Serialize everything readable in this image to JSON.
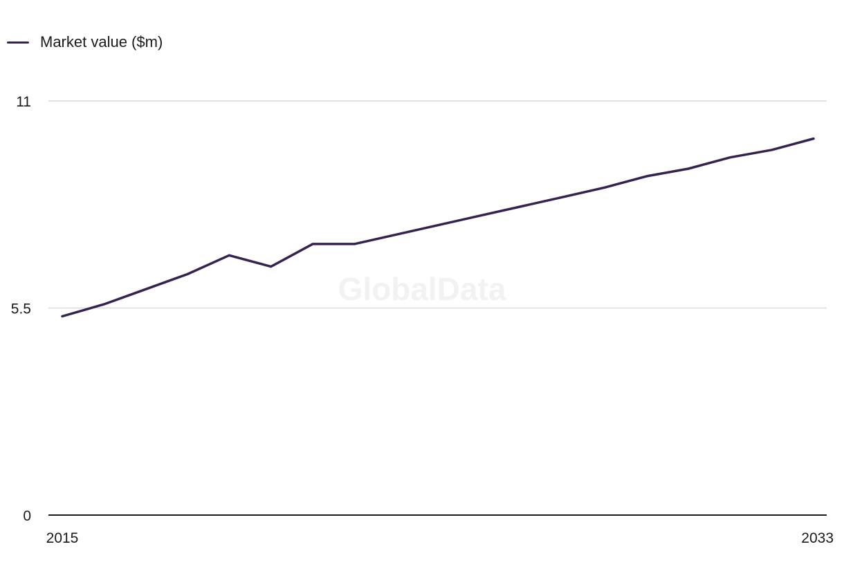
{
  "legend": {
    "label": "Market value ($m)"
  },
  "watermark": "GlobalData",
  "colors": {
    "line": "#35224f",
    "grid": "#d9d9d9",
    "axis": "#1a1a1a"
  },
  "chart_data": {
    "type": "line",
    "title": "",
    "xlabel": "",
    "ylabel": "",
    "x": [
      2015,
      2016,
      2017,
      2018,
      2019,
      2020,
      2021,
      2022,
      2023,
      2024,
      2025,
      2026,
      2027,
      2028,
      2029,
      2030,
      2031,
      2032,
      2033
    ],
    "series": [
      {
        "name": "Market value ($m)",
        "values": [
          5.28,
          5.6,
          6.0,
          6.4,
          6.9,
          6.6,
          7.2,
          7.2,
          7.45,
          7.7,
          7.95,
          8.2,
          8.45,
          8.7,
          9.0,
          9.2,
          9.5,
          9.7,
          10.0
        ]
      }
    ],
    "ylim": [
      0,
      11
    ],
    "yticks": [
      "11",
      "5.5",
      "0"
    ],
    "ytick_values": [
      11,
      5.5,
      0
    ],
    "xticks": [
      "2015",
      "2033"
    ],
    "xtick_values": [
      2015,
      2033
    ],
    "grid": true,
    "legend_position": "top-left"
  }
}
